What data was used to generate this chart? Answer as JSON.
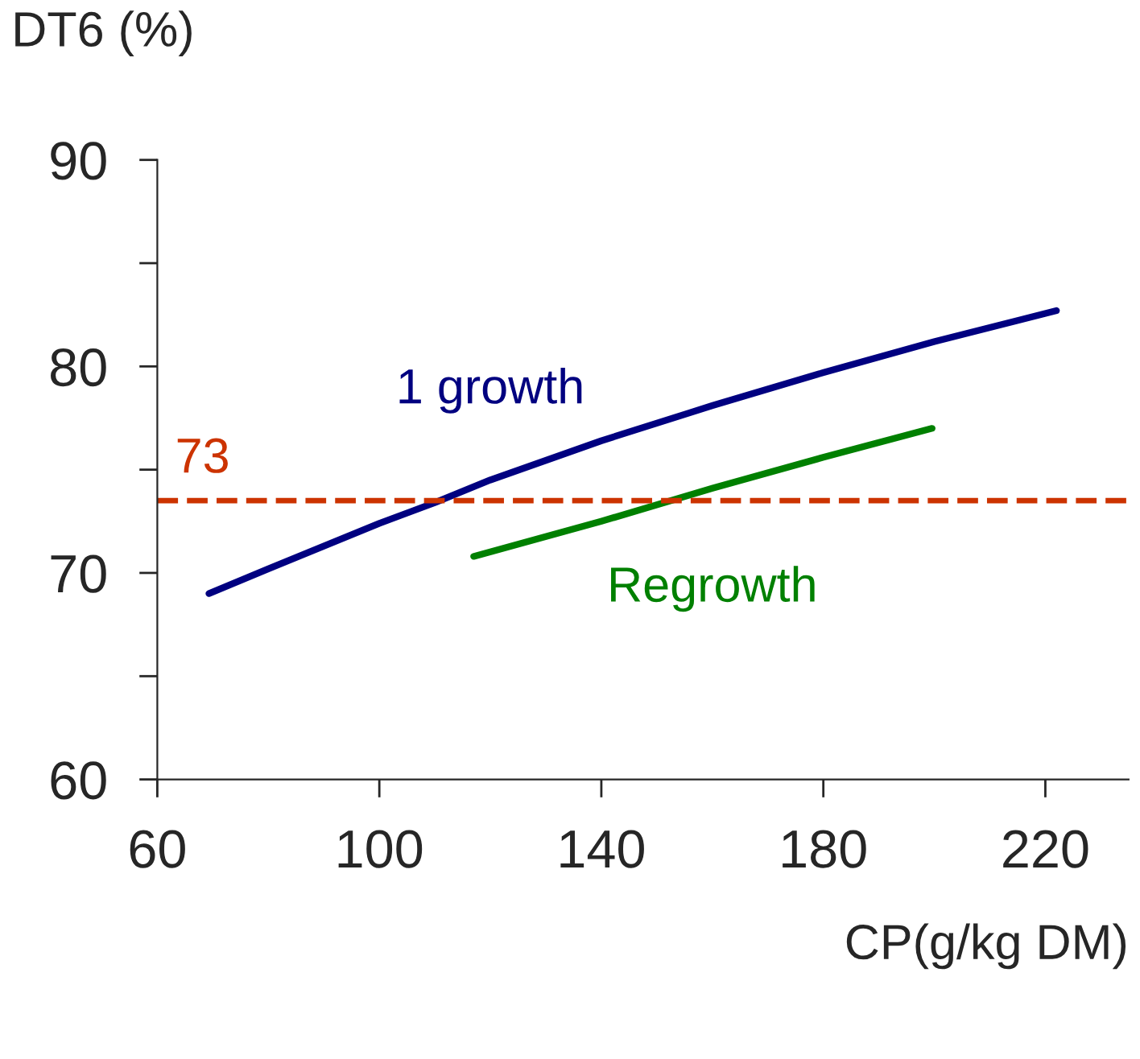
{
  "chart_data": {
    "type": "line",
    "xlabel": "CP(g/kg DM)",
    "ylabel": "DT6 (%)",
    "xlim": [
      60,
      235
    ],
    "xticks": [
      60,
      100,
      140,
      180,
      220
    ],
    "ylim": [
      60,
      90
    ],
    "yticks": [
      60,
      {
        "value": 65,
        "label": null
      },
      70,
      {
        "value": 75,
        "label": null
      },
      80,
      {
        "value": 85,
        "label": null
      },
      90
    ],
    "series": [
      {
        "name": "1 growth",
        "color": "#000080",
        "x": [
          69.3,
          80,
          90,
          100,
          110,
          120,
          140,
          160,
          180,
          200,
          222
        ],
        "values": [
          69.0,
          70.2,
          71.3,
          72.4,
          73.4,
          74.5,
          76.4,
          78.1,
          79.7,
          81.2,
          82.7
        ]
      },
      {
        "name": "Regrowth",
        "color": "#008000",
        "x": [
          117,
          140,
          160,
          180,
          199.6
        ],
        "values": [
          70.8,
          72.5,
          74.1,
          75.6,
          77.0
        ]
      }
    ],
    "ref_lines": [
      {
        "axis": "y",
        "value": 73.5,
        "label": "73",
        "color": "#cc3300",
        "line_style": "dashed"
      }
    ],
    "grid": false,
    "legend": false,
    "line_style": "solid",
    "marker": "none"
  }
}
